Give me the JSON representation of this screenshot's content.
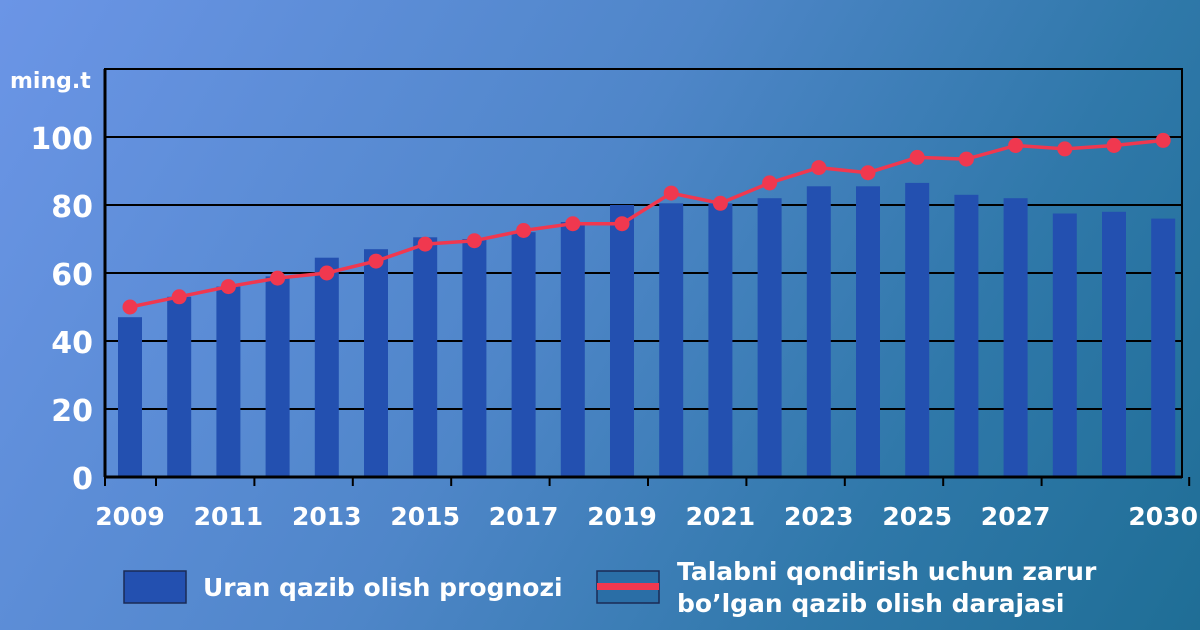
{
  "chart_data": {
    "type": "bar",
    "ylabel": "ming.t",
    "ylim": [
      0,
      120
    ],
    "yticks": [
      0,
      20,
      40,
      60,
      80,
      100
    ],
    "x_tick_labels": [
      "2009",
      "2011",
      "2013",
      "2015",
      "2017",
      "2019",
      "2021",
      "2023",
      "2025",
      "2027",
      "2030"
    ],
    "categories": [
      2009,
      2010,
      2011,
      2012,
      2013,
      2014,
      2015,
      2016,
      2017,
      2018,
      2019,
      2020,
      2021,
      2022,
      2023,
      2024,
      2025,
      2026,
      2027,
      2028,
      2029,
      2030
    ],
    "grid": "horizontal",
    "legend_position": "bottom",
    "colors": {
      "bar": "#2350b0",
      "line": "#f0384f",
      "grid": "#000000"
    },
    "series": [
      {
        "name": "Uran qazib olish prognozi",
        "type": "bar",
        "values": [
          47,
          53,
          56,
          59,
          64.5,
          67,
          70.5,
          70,
          72,
          75,
          80,
          80.5,
          80.5,
          82,
          85.5,
          85.5,
          86.5,
          83,
          82,
          77.5,
          78,
          76
        ]
      },
      {
        "name": "Talabni qondirish uchun zarur bo’lgan qazib olish darajasi",
        "type": "line",
        "values": [
          50,
          53,
          56,
          58.5,
          60,
          63.5,
          68.5,
          69.5,
          72.5,
          74.5,
          74.5,
          83.5,
          80.5,
          86.5,
          91,
          89.5,
          94,
          93.5,
          97.5,
          96.5,
          97.5,
          99
        ]
      }
    ]
  },
  "legend": {
    "bar_label": "Uran qazib olish prognozi",
    "line_label_1": "Talabni qondirish uchun zarur",
    "line_label_2": "bo’lgan qazib olish darajasi"
  }
}
